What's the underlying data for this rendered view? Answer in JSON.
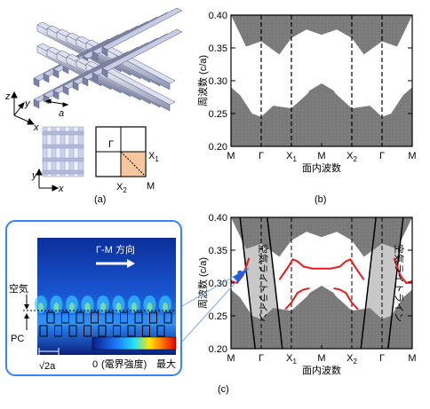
{
  "panel_labels": {
    "a": "(a)",
    "b": "(b)",
    "c": "(c)"
  },
  "crystal": {
    "axes": {
      "z": "z",
      "x": "x",
      "y": "y"
    },
    "lattice_const": "a",
    "topview_axes": {
      "y": "y",
      "x": "x"
    },
    "bz_points": {
      "gamma": "Γ",
      "x1": "X",
      "x1_sub": "1",
      "x2": "X",
      "x2_sub": "2",
      "m": "M"
    }
  },
  "inset": {
    "direction_label": "Γ-M 方向",
    "air_label": "空気",
    "pc_label": "PC",
    "scale_label": "√2a",
    "colorbar_min": "0",
    "colorbar_title": "(電界強度)",
    "colorbar_max": "最大",
    "colors": {
      "frame": "#3b82f6",
      "field_dark": "#0a2a8a",
      "field_light": "#38b6ff",
      "arrow": "#ffffff"
    }
  },
  "colors": {
    "band_gray": "#7a7a7a",
    "light_gray": "#c8c8c8",
    "guided_mode": "#e31b1b"
  },
  "chart_data": [
    {
      "type": "area",
      "panel": "b",
      "title": "",
      "ylabel": "周波数 (c/a)",
      "xlabel": "面内波数",
      "x_ticks": [
        "M",
        "Γ",
        "X1",
        "M",
        "X2",
        "Γ",
        "M"
      ],
      "ylim": [
        0.2,
        0.4
      ],
      "y_ticks": [
        0.2,
        0.25,
        0.3,
        0.35,
        0.4
      ],
      "y_tick_labels": [
        "0.20",
        "0.25",
        "0.30",
        "0.35",
        "0.40"
      ],
      "bands": [
        {
          "name": "upper",
          "x": [
            0,
            0.5,
            1,
            1.6,
            2,
            2.5,
            3,
            3.5,
            4,
            4.4,
            5,
            5.5,
            6
          ],
          "lower": [
            0.4,
            0.352,
            0.36,
            0.34,
            0.365,
            0.378,
            0.37,
            0.378,
            0.365,
            0.34,
            0.36,
            0.352,
            0.4
          ]
        },
        {
          "name": "lower",
          "x": [
            0,
            0.3,
            0.7,
            1,
            1.4,
            2,
            2.6,
            3,
            3.4,
            4,
            4.6,
            5,
            5.3,
            5.7,
            6
          ],
          "upper": [
            0.29,
            0.278,
            0.25,
            0.245,
            0.262,
            0.258,
            0.283,
            0.295,
            0.283,
            0.258,
            0.262,
            0.245,
            0.25,
            0.278,
            0.29
          ]
        }
      ],
      "inner_band": {
        "x": [
          2.3,
          2.6,
          3,
          3.4,
          3.7
        ],
        "upper": [
          0.262,
          0.285,
          0.296,
          0.285,
          0.262
        ],
        "lower": [
          0.258,
          0.275,
          0.284,
          0.275,
          0.258
        ]
      }
    },
    {
      "type": "line",
      "panel": "c",
      "title": "",
      "ylabel": "周波数 (c/a)",
      "xlabel": "面内波数",
      "x_ticks": [
        "M",
        "Γ",
        "X1",
        "M",
        "X2",
        "Γ",
        "M"
      ],
      "ylim": [
        0.2,
        0.4
      ],
      "y_ticks": [
        0.2,
        0.25,
        0.3,
        0.35,
        0.4
      ],
      "y_tick_labels": [
        "0.20",
        "0.25",
        "0.30",
        "0.35",
        "0.40"
      ],
      "light_line_label": "空気ライトライン",
      "light_lines": [
        {
          "x": [
            0.3,
            0.8
          ],
          "y": [
            0.4,
            0.2
          ]
        },
        {
          "x": [
            1.2,
            1.7
          ],
          "y": [
            0.4,
            0.2
          ]
        },
        {
          "x": [
            4.3,
            4.8
          ],
          "y": [
            0.2,
            0.4
          ]
        },
        {
          "x": [
            5.2,
            5.7
          ],
          "y": [
            0.2,
            0.4
          ]
        }
      ],
      "guided_modes": [
        {
          "x": [
            0,
            0.2,
            0.4,
            0.6
          ],
          "y": [
            0.303,
            0.3,
            0.312,
            0.338
          ]
        },
        {
          "x": [
            1.6,
            1.75,
            1.9,
            2.05,
            2.2,
            2.4,
            2.7,
            3
          ],
          "y": [
            0.305,
            0.315,
            0.325,
            0.336,
            0.333,
            0.325,
            0.322,
            0.322
          ]
        },
        {
          "x": [
            3,
            3.3,
            3.6,
            3.8,
            3.95,
            4.1,
            4.25,
            4.4
          ],
          "y": [
            0.322,
            0.322,
            0.325,
            0.333,
            0.336,
            0.325,
            0.315,
            0.305
          ]
        },
        {
          "x": [
            1.8,
            2,
            2.2,
            2.4,
            2.6
          ],
          "y": [
            0.26,
            0.27,
            0.285,
            0.29,
            0.292
          ]
        },
        {
          "x": [
            3.4,
            3.6,
            3.8,
            4,
            4.2
          ],
          "y": [
            0.292,
            0.29,
            0.285,
            0.27,
            0.26
          ]
        },
        {
          "x": [
            5.4,
            5.6,
            5.8,
            6
          ],
          "y": [
            0.338,
            0.312,
            0.3,
            0.303
          ]
        }
      ],
      "marker": {
        "x": 0.3,
        "y": 0.315
      }
    }
  ]
}
